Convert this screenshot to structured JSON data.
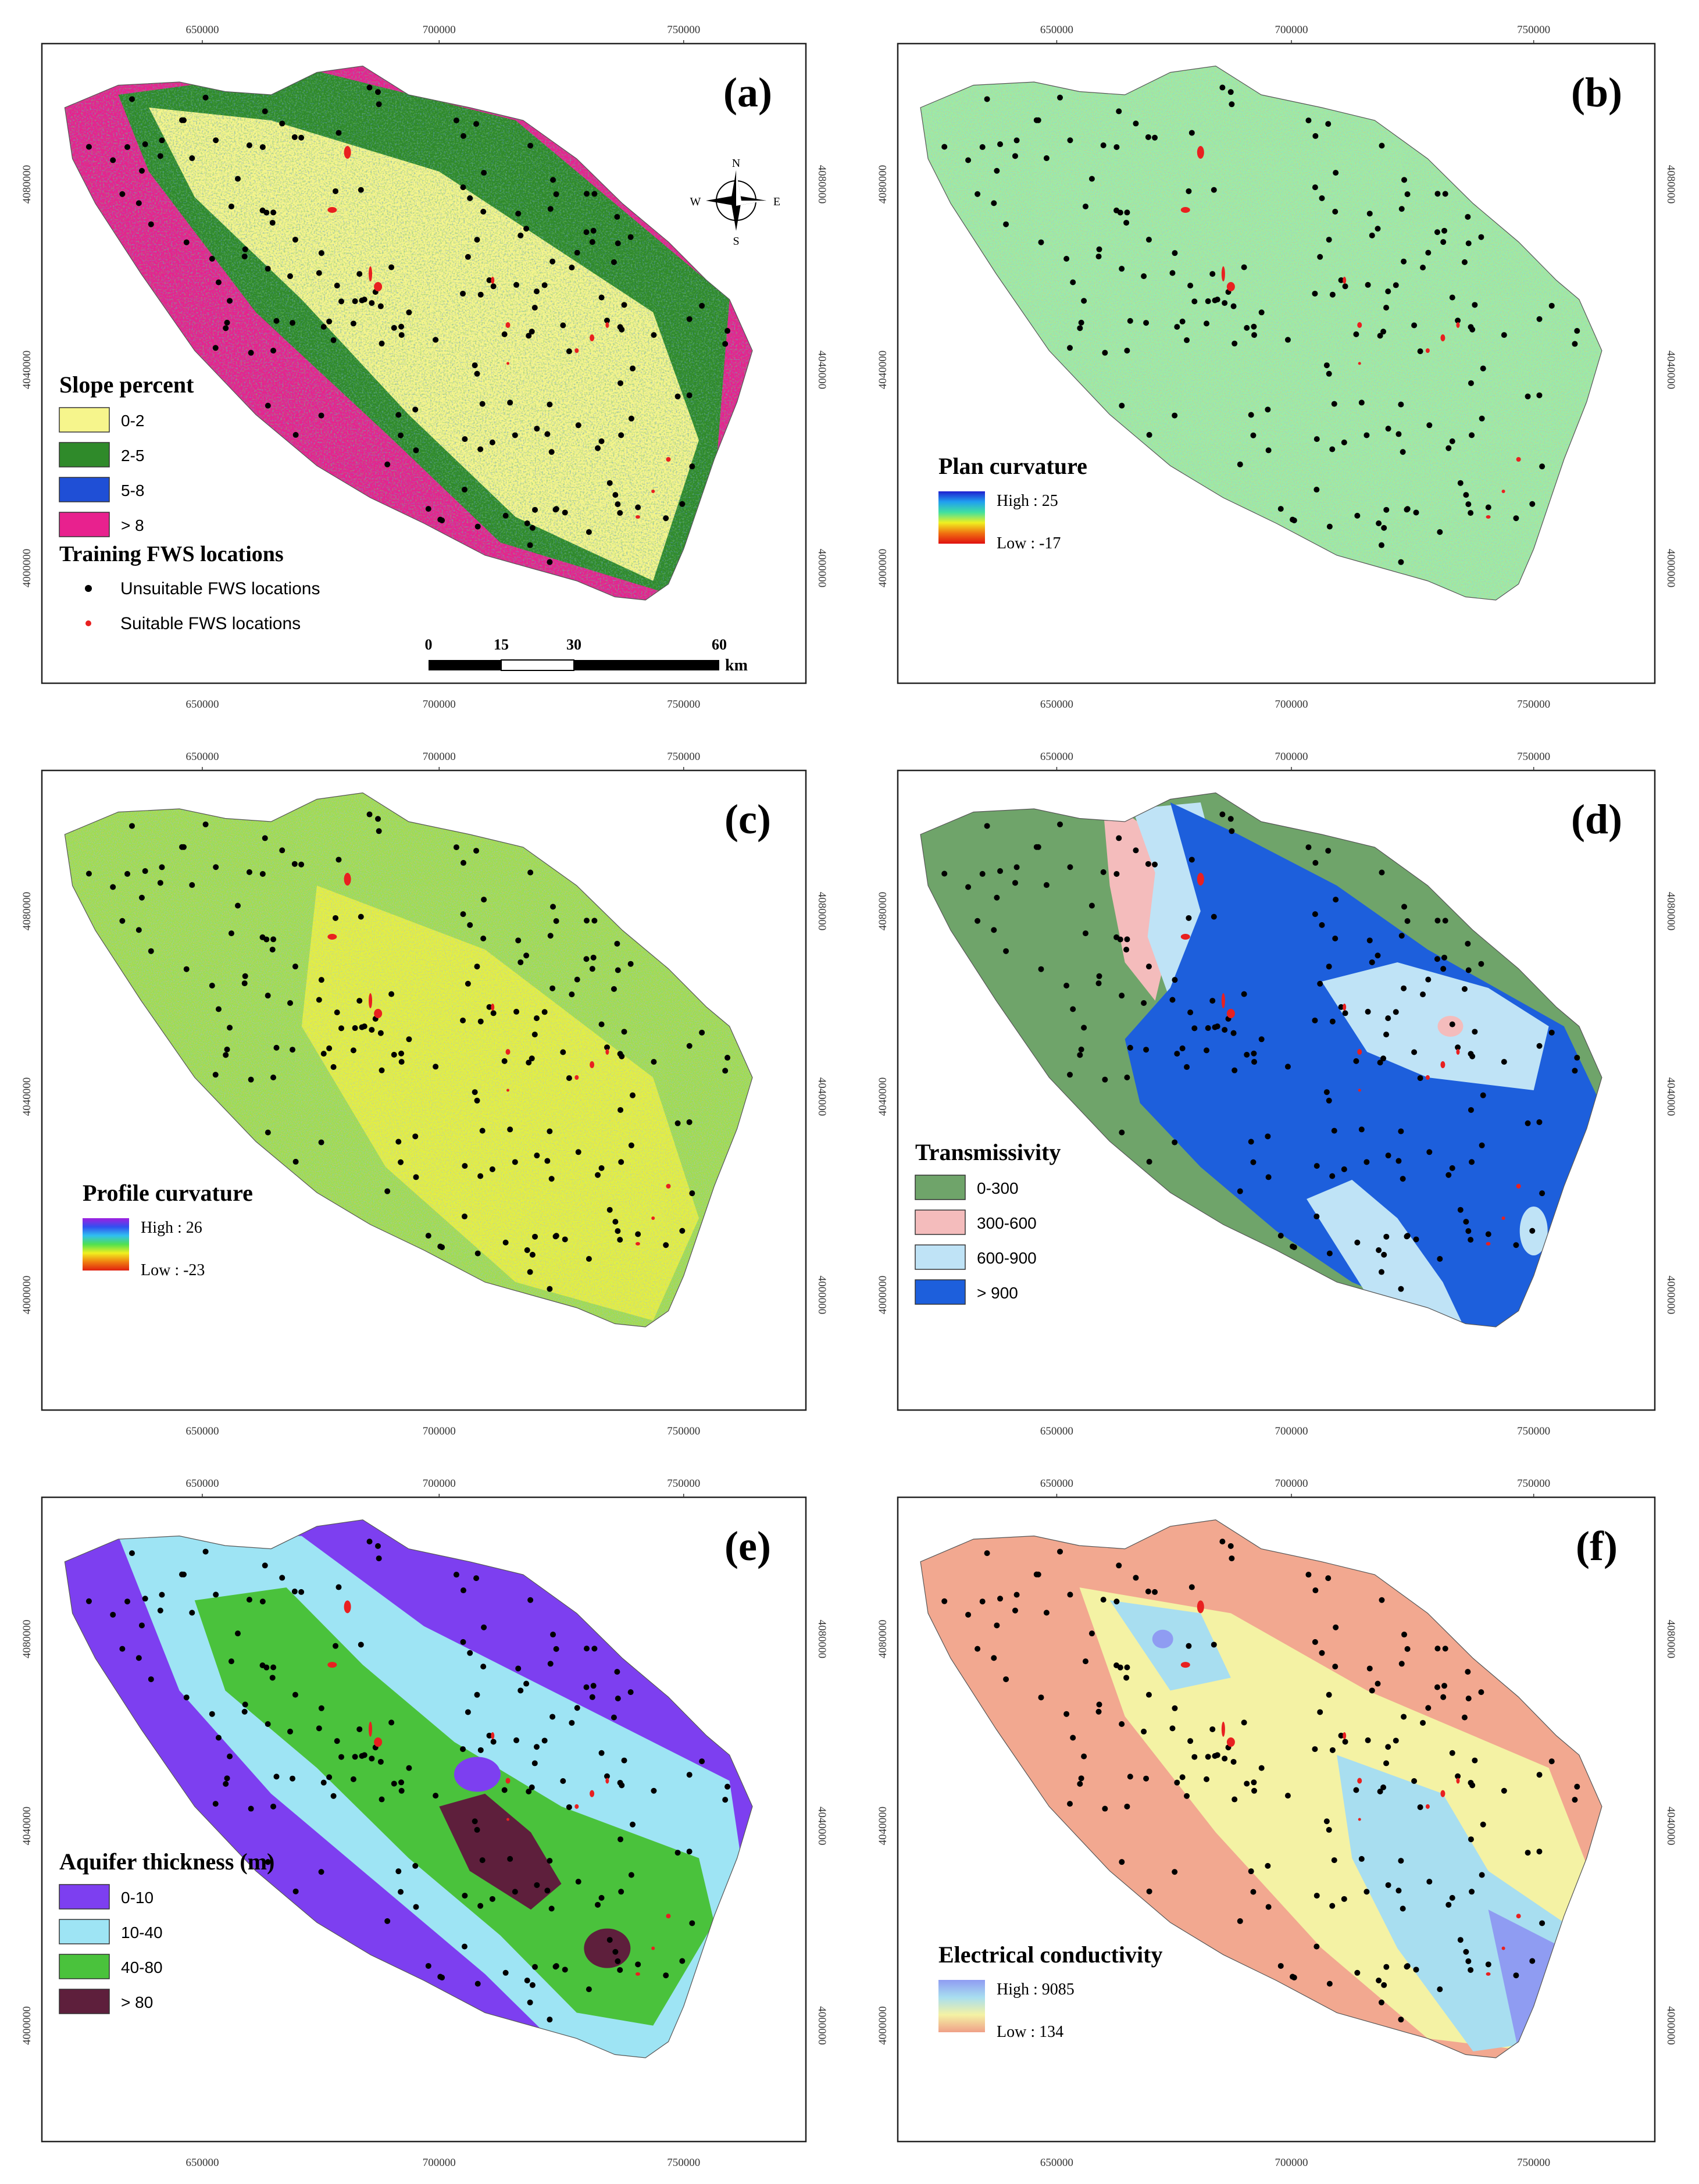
{
  "colors": {
    "suitable": "#e82020",
    "unsuitable": "#000000",
    "frame": "#222222"
  },
  "axes": {
    "x_ticks": [
      "650000",
      "700000",
      "750000"
    ],
    "y_ticks": [
      "4080000",
      "4040000",
      "4000000"
    ]
  },
  "panels": [
    {
      "letter": "(a)",
      "legend_title": "Slope percent",
      "map_type": "categorical",
      "pattern": "slope",
      "classes": [
        {
          "label": "0-2",
          "color": "#f6f58c"
        },
        {
          "label": "2-5",
          "color": "#2f8a2a"
        },
        {
          "label": "5-8",
          "color": "#1f4fd6"
        },
        {
          "label": "> 8",
          "color": "#e8218e"
        }
      ],
      "compass": {
        "n": "N",
        "s": "S",
        "e": "E",
        "w": "W"
      },
      "training": {
        "title": "Training FWS locations",
        "unsuitable": "Unsuitable FWS locations",
        "suitable": "Suitable FWS locations"
      },
      "scale_bar": {
        "ticks": [
          "0",
          "15",
          "30",
          "60"
        ],
        "unit": "km"
      }
    },
    {
      "letter": "(b)",
      "legend_title": "Plan curvature",
      "map_type": "continuous",
      "pattern": "noise",
      "high": "High : 25",
      "low": "Low : -17",
      "ramp": [
        "#2020d0",
        "#20a0f0",
        "#40e0a0",
        "#f0f020",
        "#f07010",
        "#e01010"
      ],
      "base": "#9af0a4",
      "speckle": [
        "#f0a040",
        "#5aa0f0",
        "#e0e060",
        "#60c060"
      ]
    },
    {
      "letter": "(c)",
      "legend_title": "Profile curvature",
      "map_type": "continuous",
      "pattern": "noise",
      "high": "High : 26",
      "low": "Low : -23",
      "ramp": [
        "#a020e0",
        "#3050f0",
        "#30c0f0",
        "#50e050",
        "#f0f020",
        "#f08010",
        "#e02010"
      ],
      "base": "#9be04c",
      "center": "#e4f53a",
      "speckle": [
        "#3a90f0",
        "#f08040",
        "#60c0e0",
        "#e0e040"
      ]
    },
    {
      "letter": "(d)",
      "legend_title": "Transmissivity",
      "map_type": "categorical",
      "pattern": "transmissivity",
      "classes": [
        {
          "label": "0-300",
          "color": "#6fa46a"
        },
        {
          "label": "300-600",
          "color": "#f4bcbc"
        },
        {
          "label": "600-900",
          "color": "#bfe3f6"
        },
        {
          "label": "> 900",
          "color": "#1d5fdc"
        }
      ]
    },
    {
      "letter": "(e)",
      "legend_title": "Aquifer thickness (m)",
      "map_type": "categorical",
      "pattern": "aquifer",
      "classes": [
        {
          "label": "0-10",
          "color": "#7d3ff0"
        },
        {
          "label": "10-40",
          "color": "#9ee4f4"
        },
        {
          "label": "40-80",
          "color": "#4ac23c"
        },
        {
          "label": "> 80",
          "color": "#5e1f3c"
        }
      ]
    },
    {
      "letter": "(f)",
      "legend_title": "Electrical conductivity",
      "map_type": "continuous",
      "pattern": "ec",
      "high": "High : 9085",
      "low": "Low : 134",
      "ramp": [
        "#8f9cf2",
        "#a8def0",
        "#f4f2a4",
        "#f0a088"
      ],
      "base": "#f2a890"
    }
  ]
}
